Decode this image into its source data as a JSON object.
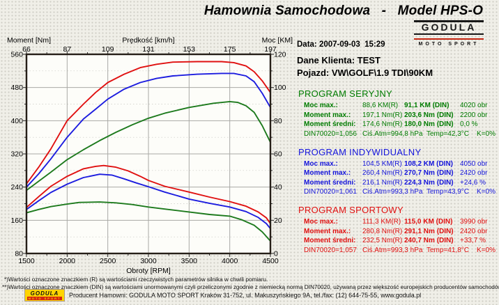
{
  "header": {
    "title": "Hamownia Samochodowa   -   Model HPS-O",
    "logo": {
      "name": "GODULA",
      "sub": "MOTO SPORT"
    }
  },
  "info": {
    "date": "Data: 2007-09-03  15:29",
    "client": "Dane Klienta: TEST",
    "vehicle": "Pojazd: VW\\GOLF\\1.9 TDI\\90KM"
  },
  "programs": [
    {
      "title": "PROGRAM SERYJNY",
      "color": "#007c00",
      "rows": [
        {
          "label": "Moc max.:",
          "r": "88,6 KM(R)",
          "din": "91,1 KM (DIN)",
          "extra": "4020 obr"
        },
        {
          "label": "Moment max.:",
          "r": "197,1 Nm(R)",
          "din": "203,6 Nm (DIN)",
          "extra": "2200 obr"
        },
        {
          "label": "Moment średni:",
          "r": "174,6 Nm(R)",
          "din": "180,0 Nm (DIN)",
          "extra": "0,0 %"
        }
      ],
      "footer": {
        "din70020": "DIN70020=1,056",
        "atm": "Ciś.Atm=994,8 hPa",
        "temp": "Temp=42,3°C",
        "k": "K=0%"
      }
    },
    {
      "title": "PROGRAM INDYWIDUALNY",
      "color": "#1414dc",
      "rows": [
        {
          "label": "Moc max.:",
          "r": "104,5 KM(R)",
          "din": "108,2 KM (DIN)",
          "extra": "4050 obr"
        },
        {
          "label": "Moment max.:",
          "r": "260,4 Nm(R)",
          "din": "270,7 Nm (DIN)",
          "extra": "2420 obr"
        },
        {
          "label": "Moment średni:",
          "r": "216,1 Nm(R)",
          "din": "224,3 Nm (DIN)",
          "extra": "+24,6 %"
        }
      ],
      "footer": {
        "din70020": "DIN70020=1,061",
        "atm": "Ciś.Atm=993,3 hPa",
        "temp": "Temp=43,9°C",
        "k": "K=0%"
      }
    },
    {
      "title": "PROGRAM SPORTOWY",
      "color": "#e01010",
      "rows": [
        {
          "label": "Moc max.:",
          "r": "111,3 KM(R)",
          "din": "115,0 KM (DIN)",
          "extra": "3990 obr"
        },
        {
          "label": "Moment max.:",
          "r": "280,8 Nm(R)",
          "din": "291,1 Nm (DIN)",
          "extra": "2420 obr"
        },
        {
          "label": "Moment średni:",
          "r": "232,5 Nm(R)",
          "din": "240,7 Nm (DIN)",
          "extra": "+33,7 %"
        }
      ],
      "footer": {
        "din70020": "DIN70020=1,057",
        "atm": "Ciś.Atm=993,3 hPa",
        "temp": "Temp=41,8°C",
        "k": "K=0%"
      }
    }
  ],
  "footnotes": [
    "*)Wartości oznaczone znaczkiem (R) są wartościami rzeczywistych parametrów silnika w chwili pomiaru.",
    "**)Wartości oznaczone znaczkiem (DIN) są wartościami unormowanymi czyli przeliczonymi zgodnie z niemiecką normą DIN70020, używaną przez większość europejskich producentów samochodów."
  ],
  "producer": {
    "logo": {
      "name": "GODULA",
      "sub": "MOTO SPORT"
    },
    "text": "Producent Hamowni: GODULA MOTO SPORT Kraków 31-752, ul. Makuszyńskiego 9A, tel./fax: (12) 644-75-55, www.godula.pl"
  },
  "chart_data": {
    "type": "line",
    "grid": true,
    "legend": "none",
    "axes": {
      "bottom": {
        "label": "Obroty [RPM]",
        "min": 1500,
        "max": 4500,
        "ticks": [
          1500,
          2000,
          2500,
          3000,
          3500,
          4000,
          4500
        ]
      },
      "top": {
        "label": "Prędkość [km/h]",
        "ticks": [
          66,
          87,
          109,
          131,
          153,
          175,
          197
        ]
      },
      "left": {
        "label": "Moment [Nm]",
        "min": 80,
        "max": 560,
        "ticks": [
          80,
          160,
          240,
          320,
          400,
          480,
          560
        ]
      },
      "right": {
        "label": "Moc [KM]",
        "min": 0,
        "max": 120,
        "ticks": [
          0,
          20,
          40,
          60,
          80,
          100,
          120
        ]
      }
    },
    "series": [
      {
        "slug": "moc-seryjny",
        "name": "Moc - PROGRAM SERYJNY",
        "unit": "KM",
        "axis": "power",
        "color": "#1d7a1d",
        "points": [
          [
            1500,
            38
          ],
          [
            1650,
            43.5
          ],
          [
            1800,
            49
          ],
          [
            2000,
            56.5
          ],
          [
            2200,
            62.5
          ],
          [
            2400,
            68
          ],
          [
            2600,
            73
          ],
          [
            2800,
            77.5
          ],
          [
            3000,
            81.5
          ],
          [
            3200,
            84.5
          ],
          [
            3500,
            88
          ],
          [
            3800,
            90.5
          ],
          [
            4000,
            91.5
          ],
          [
            4100,
            91
          ],
          [
            4200,
            89
          ],
          [
            4300,
            85
          ],
          [
            4400,
            77
          ],
          [
            4500,
            67
          ]
        ]
      },
      {
        "slug": "moment-seryjny",
        "name": "Moment - PROGRAM SERYJNY",
        "unit": "Nm",
        "axis": "torque",
        "color": "#1d7a1d",
        "points": [
          [
            1500,
            178
          ],
          [
            1650,
            186
          ],
          [
            1800,
            193
          ],
          [
            2000,
            199
          ],
          [
            2150,
            203
          ],
          [
            2400,
            204
          ],
          [
            2600,
            202
          ],
          [
            2800,
            198
          ],
          [
            3000,
            192
          ],
          [
            3200,
            187
          ],
          [
            3500,
            180
          ],
          [
            3750,
            174
          ],
          [
            4000,
            170
          ],
          [
            4150,
            161
          ],
          [
            4300,
            148
          ],
          [
            4400,
            132
          ],
          [
            4500,
            110
          ]
        ]
      },
      {
        "slug": "moc-indywidualny",
        "name": "Moc - PROGRAM INDYWIDUALNY",
        "unit": "KM",
        "axis": "power",
        "color": "#1c1cdf",
        "points": [
          [
            1500,
            40
          ],
          [
            1650,
            48
          ],
          [
            1800,
            57
          ],
          [
            2000,
            70
          ],
          [
            2200,
            81
          ],
          [
            2350,
            87
          ],
          [
            2500,
            93
          ],
          [
            2700,
            99
          ],
          [
            2900,
            103
          ],
          [
            3100,
            105.5
          ],
          [
            3300,
            107
          ],
          [
            3600,
            108
          ],
          [
            3900,
            108.5
          ],
          [
            4050,
            108.5
          ],
          [
            4200,
            107
          ],
          [
            4300,
            103.5
          ],
          [
            4400,
            96.5
          ],
          [
            4500,
            88
          ]
        ]
      },
      {
        "slug": "moment-indywidualny",
        "name": "Moment - PROGRAM INDYWIDUALNY",
        "unit": "Nm",
        "axis": "torque",
        "color": "#1c1cdf",
        "points": [
          [
            1500,
            186
          ],
          [
            1650,
            207
          ],
          [
            1800,
            227
          ],
          [
            2000,
            247
          ],
          [
            2200,
            263
          ],
          [
            2400,
            271
          ],
          [
            2550,
            269
          ],
          [
            2700,
            260
          ],
          [
            2850,
            250
          ],
          [
            3000,
            241
          ],
          [
            3200,
            228
          ],
          [
            3500,
            211
          ],
          [
            3750,
            201
          ],
          [
            4000,
            192
          ],
          [
            4200,
            181
          ],
          [
            4350,
            167
          ],
          [
            4450,
            152
          ],
          [
            4500,
            140
          ]
        ]
      },
      {
        "slug": "moc-sportowy",
        "name": "Moc - PROGRAM SPORTOWY",
        "unit": "KM",
        "axis": "power",
        "color": "#e01010",
        "points": [
          [
            1500,
            42
          ],
          [
            1650,
            52
          ],
          [
            1800,
            63
          ],
          [
            2000,
            80
          ],
          [
            2200,
            90
          ],
          [
            2350,
            97
          ],
          [
            2500,
            103
          ],
          [
            2700,
            108
          ],
          [
            2900,
            112
          ],
          [
            3100,
            114
          ],
          [
            3300,
            115.3
          ],
          [
            3600,
            115.6
          ],
          [
            3900,
            115.6
          ],
          [
            4050,
            115
          ],
          [
            4200,
            113
          ],
          [
            4300,
            109.5
          ],
          [
            4400,
            104
          ],
          [
            4500,
            97
          ]
        ]
      },
      {
        "slug": "moment-sportowy",
        "name": "Moment - PROGRAM SPORTOWY",
        "unit": "Nm",
        "axis": "torque",
        "color": "#e01010",
        "points": [
          [
            1500,
            191
          ],
          [
            1650,
            217
          ],
          [
            1800,
            242
          ],
          [
            2000,
            266
          ],
          [
            2200,
            284
          ],
          [
            2350,
            290
          ],
          [
            2450,
            292
          ],
          [
            2600,
            288
          ],
          [
            2750,
            279
          ],
          [
            2900,
            266
          ],
          [
            3000,
            256
          ],
          [
            3200,
            242
          ],
          [
            3500,
            228
          ],
          [
            3750,
            216
          ],
          [
            4000,
            205
          ],
          [
            4200,
            194
          ],
          [
            4350,
            180
          ],
          [
            4450,
            166
          ],
          [
            4500,
            152
          ]
        ]
      }
    ]
  }
}
